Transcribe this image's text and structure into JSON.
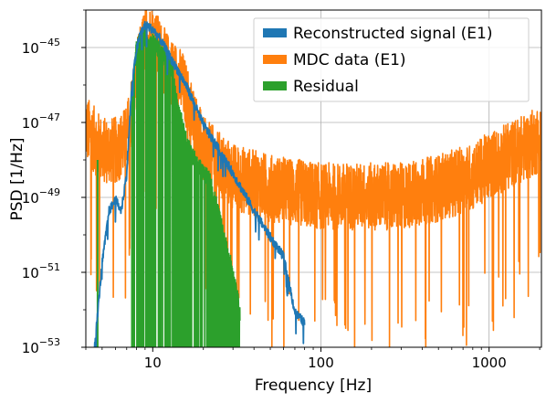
{
  "chart_data": {
    "type": "line",
    "title": "",
    "xlabel": "Frequency [Hz]",
    "ylabel": "PSD [1/Hz]",
    "x_scale": "log",
    "y_scale": "log",
    "xlim": [
      4,
      2048
    ],
    "ylim": [
      1e-53,
      1e-44
    ],
    "x_ticks": [
      {
        "value": 10,
        "label": "10"
      },
      {
        "value": 100,
        "label": "100"
      },
      {
        "value": 1000,
        "label": "1000"
      }
    ],
    "y_ticks": [
      {
        "value": 1e-53,
        "base": "10",
        "exp": "−53"
      },
      {
        "value": 1e-51,
        "base": "10",
        "exp": "−51"
      },
      {
        "value": 1e-49,
        "base": "10",
        "exp": "−49"
      },
      {
        "value": 1e-47,
        "base": "10",
        "exp": "−47"
      },
      {
        "value": 1e-45,
        "base": "10",
        "exp": "−45"
      }
    ],
    "grid": true,
    "legend_position": "top-right",
    "series": [
      {
        "name": "Reconstructed signal (E1)",
        "color": "#1f77b4",
        "x": [
          4.5,
          5.0,
          5.5,
          6.0,
          6.5,
          7.0,
          7.5,
          8.0,
          8.5,
          9.0,
          9.5,
          10,
          11,
          12,
          13,
          14,
          16,
          18,
          20,
          25,
          30,
          40,
          50,
          60,
          70,
          80
        ],
        "y": [
          1e-53,
          2e-51,
          5e-50,
          1e-49,
          5e-50,
          5e-49,
          1e-46,
          1e-45,
          3e-45,
          4.5e-45,
          4e-45,
          3.5e-45,
          2e-45,
          1e-45,
          5e-46,
          3e-46,
          1e-46,
          3e-47,
          1e-47,
          2e-48,
          5e-49,
          5e-50,
          1e-50,
          3e-51,
          1e-52,
          5e-53
        ]
      },
      {
        "name": "MDC data (E1)",
        "color": "#ff7f0e",
        "x": [
          4,
          5,
          6,
          7,
          8,
          9,
          10,
          12,
          15,
          20,
          30,
          50,
          100,
          200,
          300,
          500,
          800,
          1000,
          1500,
          2000
        ],
        "y": [
          2e-47,
          5e-48,
          5e-48,
          1e-47,
          5e-46,
          5e-45,
          5e-45,
          1e-45,
          3e-46,
          5e-48,
          1e-48,
          5e-49,
          3e-49,
          3e-49,
          3e-49,
          5e-49,
          1e-48,
          2e-48,
          5e-48,
          1e-47
        ]
      },
      {
        "name": "Residual",
        "color": "#2ca02c",
        "x": [
          7.5,
          8,
          8.5,
          9,
          10,
          11,
          12,
          13,
          14,
          16,
          18,
          20,
          22,
          25,
          30,
          33
        ],
        "y": [
          5e-47,
          1e-45,
          2e-45,
          2e-45,
          1.5e-45,
          1e-45,
          5e-46,
          3e-46,
          3e-47,
          3e-48,
          1e-48,
          5e-49,
          3e-49,
          3e-50,
          1e-51,
          1e-52
        ]
      }
    ]
  }
}
